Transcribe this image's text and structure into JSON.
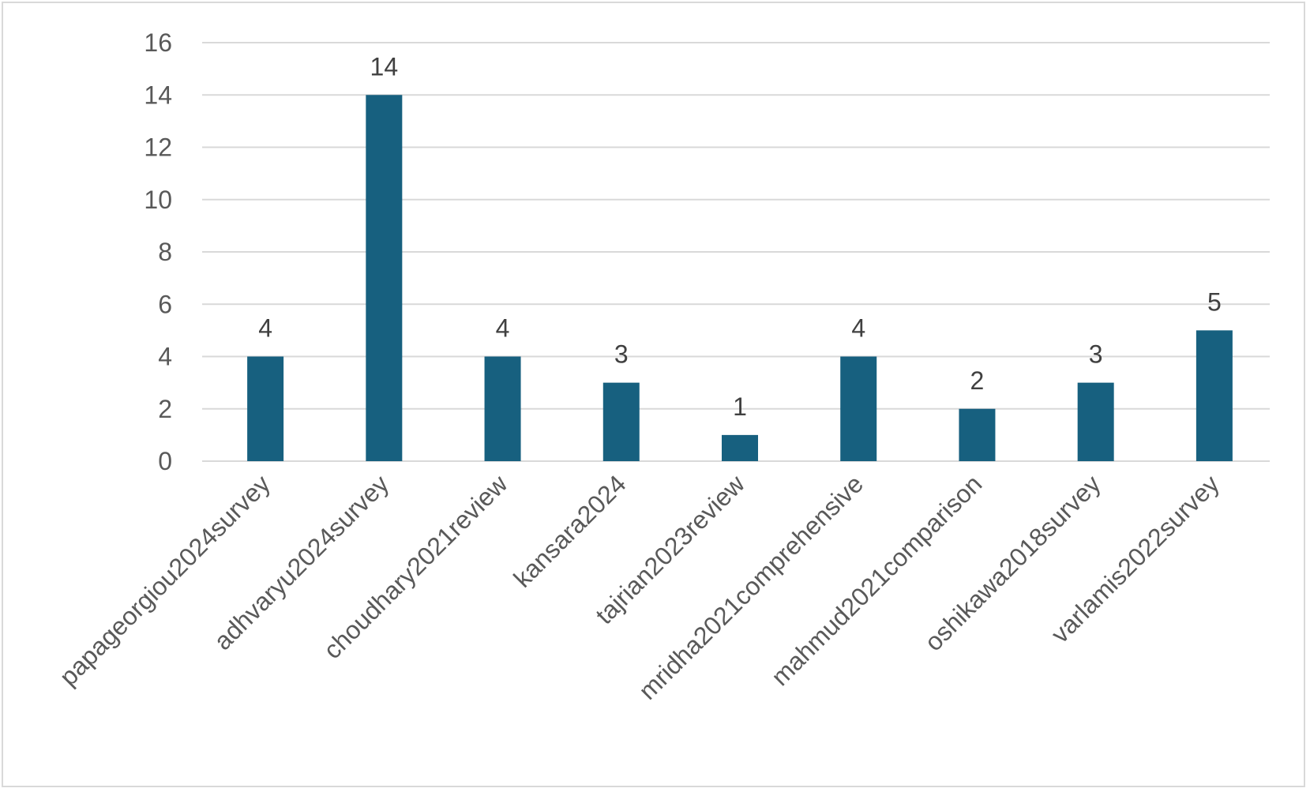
{
  "chart_data": {
    "type": "bar",
    "categories": [
      "papageorgiou2024survey",
      "adhvaryu2024survey",
      "choudhary2021review",
      "kansara2024",
      "tajrian2023review",
      "mridha2021comprehensive",
      "mahmud2021comparison",
      "oshikawa2018survey",
      "varlamis2022survey"
    ],
    "values": [
      4,
      14,
      4,
      3,
      1,
      4,
      2,
      3,
      5
    ],
    "title": "",
    "xlabel": "",
    "ylabel": "",
    "ylim": [
      0,
      16
    ],
    "yticks": [
      0,
      2,
      4,
      6,
      8,
      10,
      12,
      14,
      16
    ],
    "grid": true,
    "legend": "none",
    "data_labels": true,
    "colors": {
      "bar": "#17607f",
      "gridline": "#d9d9d9",
      "axis_text": "#595959",
      "data_label_text": "#404040",
      "frame": "#d9d9d9"
    }
  }
}
